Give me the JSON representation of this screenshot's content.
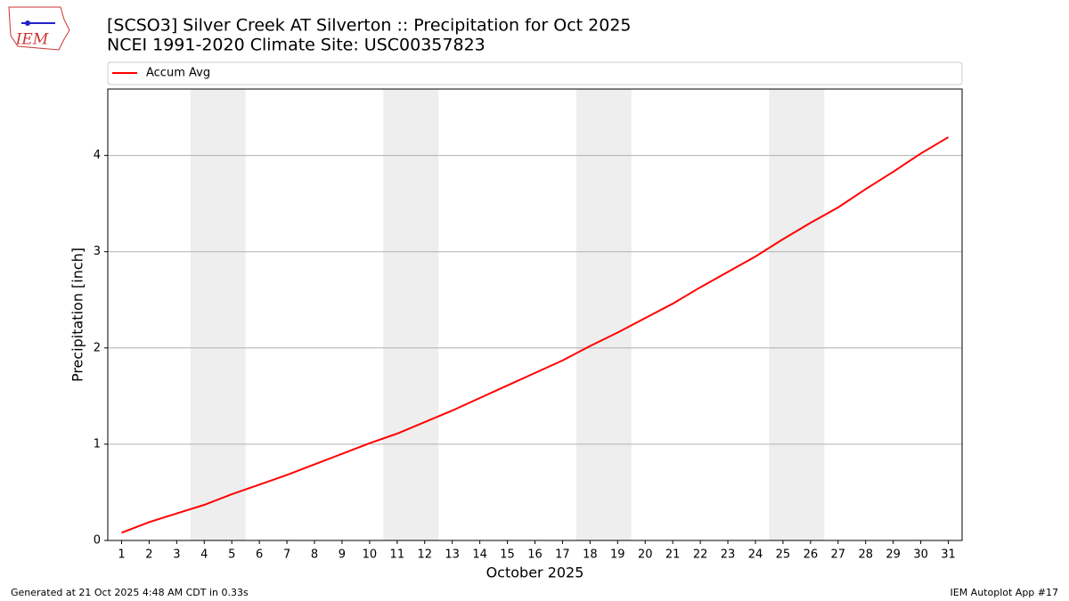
{
  "chart_data": {
    "type": "line",
    "title": "[SCSO3] Silver Creek  AT Silverton :: Precipitation for Oct 2025",
    "subtitle": "NCEI 1991-2020 Climate Site: USC00357823",
    "x_label": "October 2025",
    "y_label": "Precipitation [inch]",
    "x": [
      1,
      2,
      3,
      4,
      5,
      6,
      7,
      8,
      9,
      10,
      11,
      12,
      13,
      14,
      15,
      16,
      17,
      18,
      19,
      20,
      21,
      22,
      23,
      24,
      25,
      26,
      27,
      28,
      29,
      30,
      31
    ],
    "series": [
      {
        "name": "Accum Avg",
        "color": "#ff0000",
        "values": [
          0.08,
          0.19,
          0.28,
          0.37,
          0.48,
          0.58,
          0.68,
          0.79,
          0.9,
          1.01,
          1.11,
          1.23,
          1.35,
          1.48,
          1.61,
          1.74,
          1.87,
          2.02,
          2.16,
          2.31,
          2.46,
          2.63,
          2.79,
          2.95,
          3.13,
          3.3,
          3.46,
          3.65,
          3.83,
          4.02,
          4.19
        ]
      }
    ],
    "xlim": [
      0.5,
      31.5
    ],
    "xticks": [
      1,
      2,
      3,
      4,
      5,
      6,
      7,
      8,
      9,
      10,
      11,
      12,
      13,
      14,
      15,
      16,
      17,
      18,
      19,
      20,
      21,
      22,
      23,
      24,
      25,
      26,
      27,
      28,
      29,
      30,
      31
    ],
    "ylim": [
      0,
      4.69
    ],
    "yticks": [
      0,
      1,
      2,
      3,
      4
    ],
    "grid": "y",
    "legend": "top",
    "shaded_spans": [
      [
        3.5,
        5.5
      ],
      [
        10.5,
        12.5
      ],
      [
        17.5,
        19.5
      ],
      [
        24.5,
        26.5
      ]
    ],
    "shade_color": "#eeeeee"
  },
  "logo_text": "IEM",
  "footer_left": "Generated at 21 Oct 2025 4:48 AM CDT in 0.33s",
  "footer_right": "IEM Autoplot App #17"
}
